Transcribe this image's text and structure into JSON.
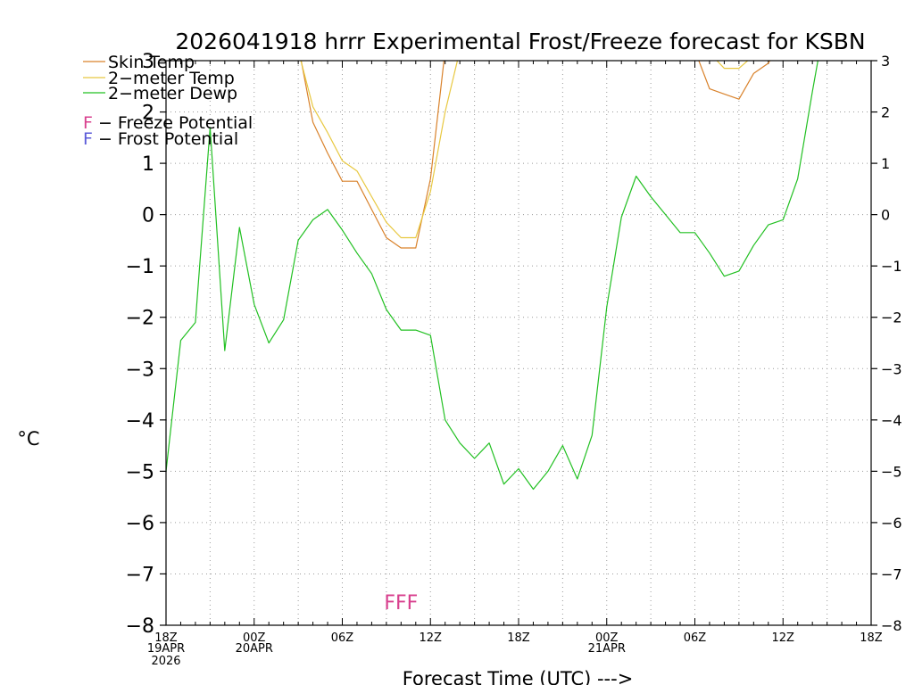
{
  "chart_data": {
    "type": "line",
    "title": "2026041918 hrrr Experimental Frost/Freeze forecast for KSBN",
    "xlabel": "Forecast Time (UTC) --->",
    "ylabel": "°C",
    "ylim": [
      -8,
      3
    ],
    "xlim_hours": [
      0,
      48
    ],
    "yticks": [
      3,
      2,
      1,
      0,
      -1,
      -2,
      -3,
      -4,
      -5,
      -6,
      -7,
      -8
    ],
    "ytick_labels": [
      "3",
      "2",
      "1",
      "0",
      "−1",
      "−2",
      "−3",
      "−4",
      "−5",
      "−6",
      "−7",
      "−8"
    ],
    "xticks": [
      {
        "hour": 0,
        "label": "18Z",
        "sub1": "19APR",
        "sub2": "2026"
      },
      {
        "hour": 6,
        "label": "00Z",
        "sub1": "20APR",
        "sub2": ""
      },
      {
        "hour": 12,
        "label": "06Z",
        "sub1": "",
        "sub2": ""
      },
      {
        "hour": 18,
        "label": "12Z",
        "sub1": "",
        "sub2": ""
      },
      {
        "hour": 24,
        "label": "18Z",
        "sub1": "",
        "sub2": ""
      },
      {
        "hour": 30,
        "label": "00Z",
        "sub1": "21APR",
        "sub2": ""
      },
      {
        "hour": 36,
        "label": "06Z",
        "sub1": "",
        "sub2": ""
      },
      {
        "hour": 42,
        "label": "12Z",
        "sub1": "",
        "sub2": ""
      },
      {
        "hour": 48,
        "label": "18Z",
        "sub1": "",
        "sub2": ""
      }
    ],
    "legend": [
      {
        "label": "Skin Temp",
        "color": "#d9822b"
      },
      {
        "label": "2−meter Temp",
        "color": "#e8c840"
      },
      {
        "label": "2−meter Dewp",
        "color": "#22c022"
      }
    ],
    "potential_legend": [
      {
        "marker": "F",
        "text": " − Freeze Potential",
        "color": "#d8408e"
      },
      {
        "marker": "F",
        "text": " − Frost Potential",
        "color": "#5b5bd8"
      }
    ],
    "series": [
      {
        "name": "Skin Temp",
        "color": "#d9822b",
        "x": [
          7.6,
          8,
          9,
          10,
          11,
          12,
          13,
          14,
          15,
          16,
          17,
          18,
          19,
          36,
          37,
          38,
          39,
          40,
          41,
          41.5
        ],
        "values": [
          3.2,
          3.0,
          3.3,
          1.8,
          1.2,
          0.65,
          0.65,
          0.1,
          -0.45,
          -0.65,
          -0.65,
          0.7,
          3.2,
          3.2,
          2.45,
          2.35,
          2.25,
          2.75,
          2.95,
          3.2
        ]
      },
      {
        "name": "2-meter Temp",
        "color": "#e8c840",
        "x": [
          9,
          10,
          11,
          12,
          13,
          14,
          15,
          16,
          17,
          18,
          19,
          20,
          37,
          37.5,
          38,
          39,
          40,
          40.5
        ],
        "values": [
          3.2,
          2.1,
          1.6,
          1.05,
          0.85,
          0.35,
          -0.15,
          -0.45,
          -0.45,
          0.45,
          2.0,
          3.2,
          3.2,
          3.0,
          2.85,
          2.85,
          3.1,
          3.2
        ]
      },
      {
        "name": "2-meter Dewp",
        "color": "#22c022",
        "x": [
          0,
          1,
          2,
          3,
          4,
          5,
          6,
          7,
          8,
          9,
          10,
          11,
          12,
          13,
          14,
          15,
          16,
          17,
          18,
          19,
          20,
          21,
          22,
          23,
          24,
          25,
          26,
          27,
          28,
          29,
          30,
          31,
          32,
          33,
          34,
          35,
          36,
          37,
          38,
          39,
          40,
          41,
          42,
          43,
          44,
          44.5
        ],
        "values": [
          -5.0,
          -2.45,
          -2.1,
          1.7,
          -2.65,
          -0.25,
          -1.75,
          -2.5,
          -2.05,
          -0.5,
          -0.1,
          0.1,
          -0.3,
          -0.75,
          -1.15,
          -1.85,
          -2.25,
          -2.25,
          -2.35,
          -4.0,
          -4.45,
          -4.75,
          -4.45,
          -5.25,
          -4.95,
          -5.35,
          -5.0,
          -4.5,
          -5.15,
          -4.3,
          -1.8,
          -0.05,
          0.75,
          0.35,
          0.0,
          -0.35,
          -0.35,
          -0.75,
          -1.2,
          -1.1,
          -0.6,
          -0.2,
          -0.1,
          0.7,
          2.4,
          3.2
        ]
      }
    ],
    "annotations": [
      {
        "text": "FFF",
        "color": "#d8408e",
        "x_hour": 16,
        "y_value": -7.55
      }
    ]
  }
}
